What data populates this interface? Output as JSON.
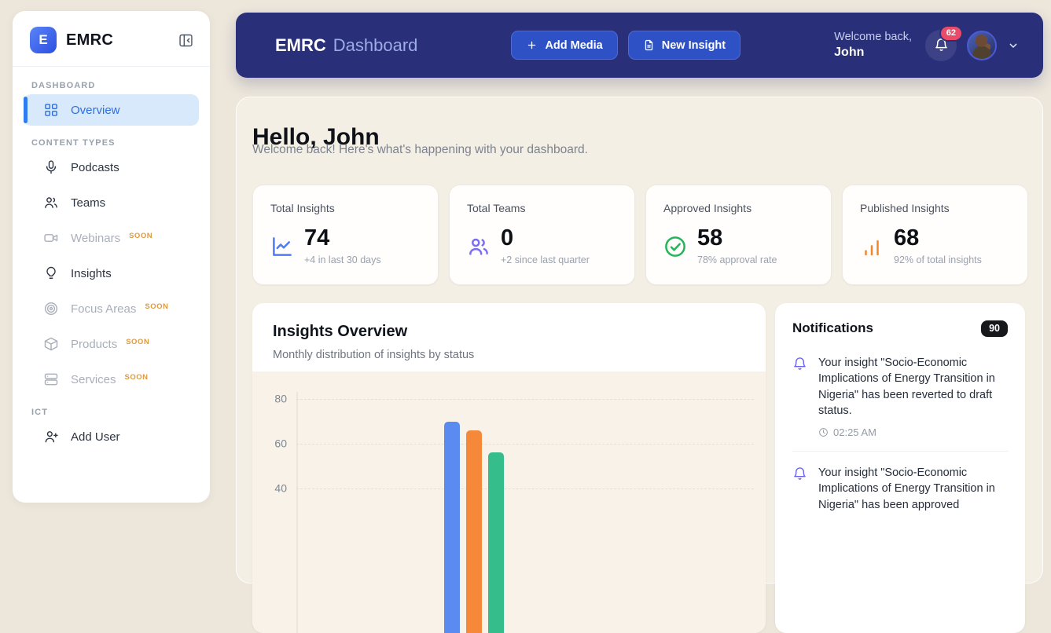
{
  "sidebar": {
    "logo_letter": "E",
    "brand": "EMRC",
    "sections": [
      {
        "label": "DASHBOARD",
        "items": [
          {
            "label": "Overview",
            "icon": "grid",
            "active": true
          }
        ]
      },
      {
        "label": "CONTENT TYPES",
        "items": [
          {
            "label": "Podcasts",
            "icon": "microphone"
          },
          {
            "label": "Teams",
            "icon": "users"
          },
          {
            "label": "Webinars",
            "icon": "video-camera",
            "badge": "SOON"
          },
          {
            "label": "Insights",
            "icon": "lightbulb"
          },
          {
            "label": "Focus Areas",
            "icon": "target",
            "badge": "SOON"
          },
          {
            "label": "Products",
            "icon": "package",
            "badge": "SOON"
          },
          {
            "label": "Services",
            "icon": "server",
            "badge": "SOON"
          }
        ]
      },
      {
        "label": "ICT",
        "items": [
          {
            "label": "Add User",
            "icon": "user-plus"
          }
        ]
      }
    ]
  },
  "header": {
    "brand_bold": "EMRC",
    "brand_light": "Dashboard",
    "buttons": [
      {
        "label": "Add Media",
        "icon": "plus"
      },
      {
        "label": "New Insight",
        "icon": "document"
      }
    ],
    "welcome_prefix": "Welcome back,",
    "user_name": "John",
    "notification_badge": "62"
  },
  "main": {
    "greeting": "Hello, John",
    "subtitle": "Welcome back! Here's what's happening with your dashboard.",
    "stats": [
      {
        "title": "Total Insights",
        "value": "74",
        "sub": "+4 in last 30 days",
        "icon": "line-chart",
        "color": "#4f7cf0"
      },
      {
        "title": "Total Teams",
        "value": "0",
        "sub": "+2 since last quarter",
        "icon": "users",
        "color": "#7a6ff0"
      },
      {
        "title": "Approved Insights",
        "value": "58",
        "sub": "78% approval rate",
        "icon": "check-circle",
        "color": "#23b558"
      },
      {
        "title": "Published Insights",
        "value": "68",
        "sub": "92% of total insights",
        "icon": "bar-chart",
        "color": "#f0862e"
      }
    ]
  },
  "chart_panel": {
    "title": "Insights Overview",
    "subtitle": "Monthly distribution of insights by status"
  },
  "chart_data": {
    "type": "bar",
    "title": "Insights Overview",
    "subtitle": "Monthly distribution of insights by status",
    "yticks": [
      80,
      60,
      40
    ],
    "grid": "horizontal-dashed",
    "series": [
      {
        "name": "series-blue",
        "color": "#5b8bf0",
        "value": 70
      },
      {
        "name": "series-orange",
        "color": "#f6883a",
        "value": 66
      },
      {
        "name": "series-green",
        "color": "#35bd8c",
        "value": 56
      }
    ]
  },
  "notifications": {
    "title": "Notifications",
    "count": "90",
    "items": [
      {
        "text": "Your insight \"Socio-Economic Implications of Energy Transition in Nigeria\" has been reverted to draft status.",
        "time": "02:25 AM"
      },
      {
        "text": "Your insight \"Socio-Economic Implications of Energy Transition in Nigeria\" has been approved",
        "time": ""
      }
    ]
  },
  "colors": {
    "header_bg": "#293079",
    "badge_red": "#ea4b68",
    "notification_bell": "#6b64ee",
    "active_item": "#2e6fe0",
    "soon_badge": "#df9b3e"
  }
}
